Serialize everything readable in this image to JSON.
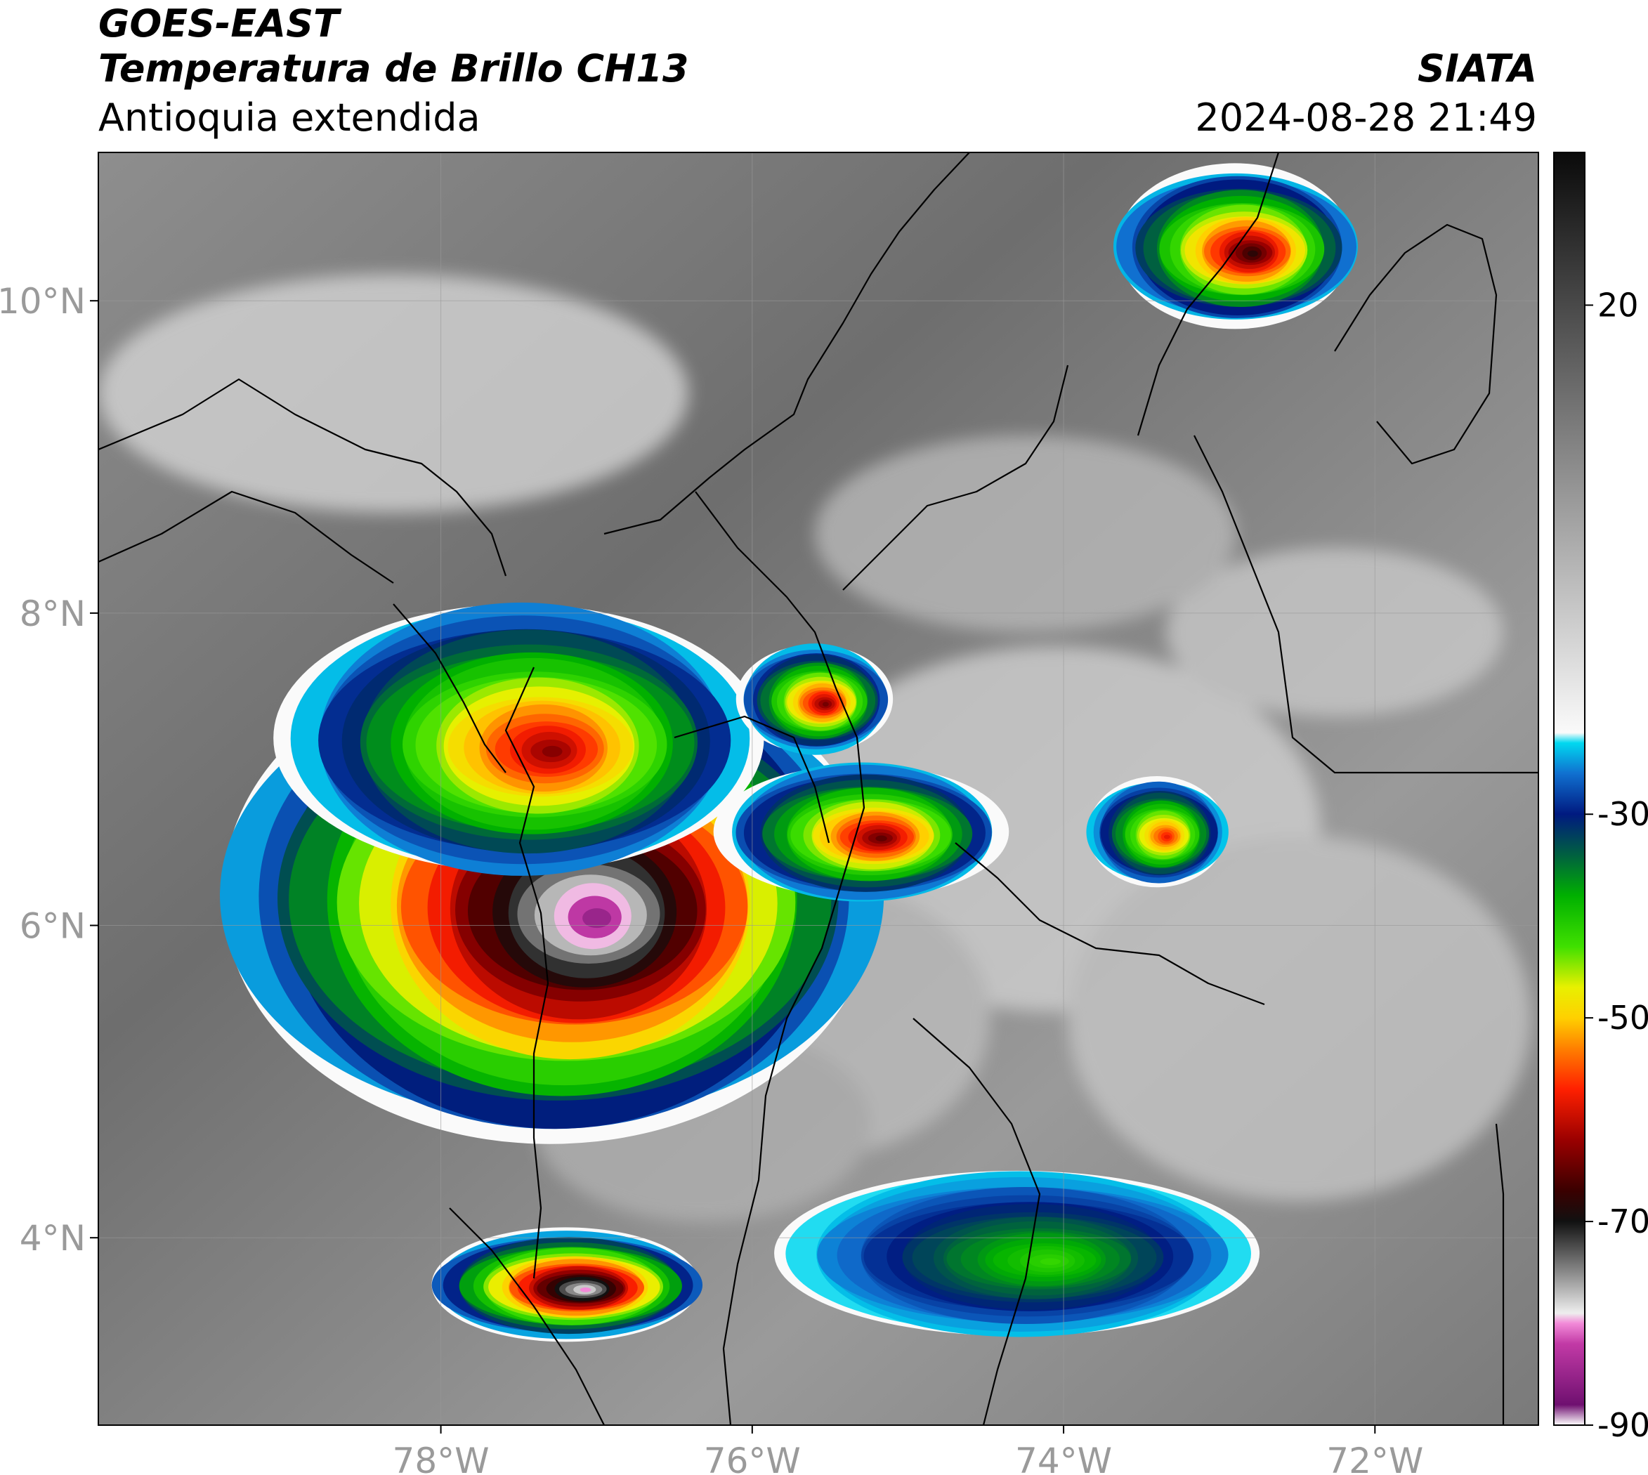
{
  "header": {
    "satellite": "GOES-EAST",
    "product": "Temperatura de Brillo CH13",
    "region": "Antioquia extendida",
    "agency": "SIATA",
    "datetime": "2024-08-28 21:49"
  },
  "map": {
    "lon_range": [
      -80.2,
      -70.95
    ],
    "lat_range": [
      2.8,
      10.95
    ],
    "lon_ticks": [
      {
        "value": -78,
        "label": "78°W"
      },
      {
        "value": -76,
        "label": "76°W"
      },
      {
        "value": -74,
        "label": "74°W"
      },
      {
        "value": -72,
        "label": "72°W"
      }
    ],
    "lat_ticks": [
      {
        "value": 10,
        "label": "10°N"
      },
      {
        "value": 8,
        "label": "8°N"
      },
      {
        "value": 6,
        "label": "6°N"
      },
      {
        "value": 4,
        "label": "4°N"
      }
    ]
  },
  "colorbar": {
    "range": [
      -90,
      35
    ],
    "ticks": [
      {
        "value": 20,
        "label": "20"
      },
      {
        "value": -30,
        "label": "-30"
      },
      {
        "value": -50,
        "label": "-50"
      },
      {
        "value": -70,
        "label": "-70"
      },
      {
        "value": -90,
        "label": "-90"
      }
    ],
    "stops": [
      {
        "value": -90,
        "color": "#ffffff"
      },
      {
        "value": -88,
        "color": "#6f1070"
      },
      {
        "value": -82,
        "color": "#c23aa6"
      },
      {
        "value": -80,
        "color": "#f28ad8"
      },
      {
        "value": -79,
        "color": "#eeeeee"
      },
      {
        "value": -75,
        "color": "#8a8a8a"
      },
      {
        "value": -70,
        "color": "#111111"
      },
      {
        "value": -67,
        "color": "#3a0000"
      },
      {
        "value": -62,
        "color": "#9a0000"
      },
      {
        "value": -57,
        "color": "#ff2000"
      },
      {
        "value": -53,
        "color": "#ff8000"
      },
      {
        "value": -50,
        "color": "#ffd000"
      },
      {
        "value": -47,
        "color": "#e8f000"
      },
      {
        "value": -43,
        "color": "#40e000"
      },
      {
        "value": -38,
        "color": "#00b000"
      },
      {
        "value": -34,
        "color": "#006040"
      },
      {
        "value": -30,
        "color": "#001a80"
      },
      {
        "value": -26,
        "color": "#1070d0"
      },
      {
        "value": -23,
        "color": "#00d8f0"
      },
      {
        "value": -22,
        "color": "#fafafa"
      },
      {
        "value": 35,
        "color": "#0a0a0a"
      }
    ]
  },
  "cloud_systems": [
    {
      "lon": -77.3,
      "lat": 6.2,
      "rx": 2.1,
      "ry": 1.6,
      "min_temp": -85
    },
    {
      "lon": -77.5,
      "lat": 7.2,
      "rx": 1.5,
      "ry": 0.9,
      "min_temp": -63
    },
    {
      "lon": -75.3,
      "lat": 6.6,
      "rx": 0.9,
      "ry": 0.45,
      "min_temp": -65
    },
    {
      "lon": -75.6,
      "lat": 7.45,
      "rx": 0.5,
      "ry": 0.35,
      "min_temp": -64
    },
    {
      "lon": -77.2,
      "lat": 3.7,
      "rx": 0.9,
      "ry": 0.35,
      "min_temp": -80
    },
    {
      "lon": -72.9,
      "lat": 10.35,
      "rx": 0.8,
      "ry": 0.5,
      "min_temp": -68
    },
    {
      "lon": -73.4,
      "lat": 6.6,
      "rx": 0.45,
      "ry": 0.35,
      "min_temp": -58
    },
    {
      "lon": -74.3,
      "lat": 3.9,
      "rx": 1.5,
      "ry": 0.55,
      "min_temp": -42
    }
  ],
  "labels": {
    "map_name": "brightness-temperature-map",
    "colorbar_name": "colorbar"
  }
}
